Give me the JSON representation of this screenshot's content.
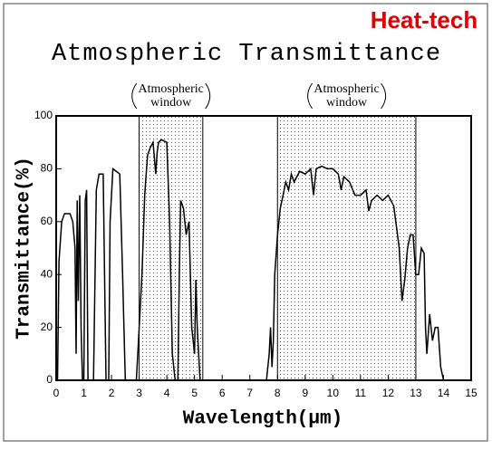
{
  "chart_data": {
    "type": "line",
    "title": "Atmospheric Transmittance",
    "brand": "Heat-tech",
    "xlabel": "Wavelength(μm)",
    "ylabel": "Transmittance(%)",
    "xlim": [
      0,
      15
    ],
    "xticks": [
      0,
      1,
      2,
      3,
      4,
      5,
      6,
      7,
      8,
      9,
      10,
      11,
      12,
      13,
      14,
      15
    ],
    "ylim": [
      0,
      100
    ],
    "yticks": [
      0,
      20,
      40,
      60,
      80,
      100
    ],
    "color": "#000000",
    "windows": [
      {
        "from": 3,
        "to": 5.3,
        "label": [
          "Atmospheric",
          "window"
        ]
      },
      {
        "from": 8,
        "to": 13,
        "label": [
          "Atmospheric",
          "window"
        ]
      }
    ],
    "x": [
      0.05,
      0.1,
      0.2,
      0.3,
      0.5,
      0.6,
      0.68,
      0.72,
      0.76,
      0.8,
      0.85,
      0.9,
      0.95,
      1.0,
      1.05,
      1.1,
      1.15,
      1.2,
      1.3,
      1.35,
      1.45,
      1.55,
      1.7,
      1.75,
      1.8,
      1.9,
      1.95,
      2.05,
      2.3,
      2.4,
      2.5,
      2.9,
      3.0,
      3.1,
      3.2,
      3.3,
      3.4,
      3.5,
      3.6,
      3.65,
      3.7,
      3.8,
      4.0,
      4.1,
      4.2,
      4.3,
      4.4,
      4.45,
      4.5,
      4.6,
      4.7,
      4.8,
      4.9,
      5.0,
      5.05,
      5.1,
      5.2,
      5.3,
      7.5,
      7.6,
      7.7,
      7.75,
      7.8,
      7.85,
      7.9,
      8.0,
      8.1,
      8.2,
      8.3,
      8.4,
      8.5,
      8.6,
      8.8,
      9.0,
      9.2,
      9.3,
      9.4,
      9.6,
      9.8,
      10.0,
      10.2,
      10.3,
      10.4,
      10.6,
      10.8,
      11.0,
      11.2,
      11.3,
      11.4,
      11.6,
      11.8,
      12.0,
      12.2,
      12.3,
      12.4,
      12.5,
      12.6,
      12.7,
      12.8,
      12.9,
      13.0,
      13.1,
      13.2,
      13.3,
      13.35,
      13.4,
      13.5,
      13.6,
      13.7,
      13.8,
      13.9,
      14.0
    ],
    "values": [
      0,
      45,
      60,
      63,
      63,
      60,
      50,
      10,
      68,
      30,
      70,
      20,
      0,
      0,
      68,
      72,
      0,
      0,
      0,
      0,
      72,
      78,
      78,
      40,
      0,
      0,
      60,
      80,
      78,
      40,
      0,
      0,
      20,
      40,
      70,
      85,
      88,
      90,
      78,
      86,
      90,
      91,
      90,
      60,
      10,
      0,
      0,
      40,
      68,
      65,
      55,
      60,
      20,
      10,
      38,
      20,
      0,
      0,
      0,
      0,
      10,
      20,
      5,
      15,
      40,
      55,
      65,
      70,
      75,
      72,
      78,
      75,
      79,
      78,
      80,
      70,
      80,
      81,
      80,
      80,
      78,
      72,
      77,
      75,
      70,
      70,
      72,
      64,
      68,
      70,
      68,
      70,
      66,
      58,
      50,
      30,
      38,
      50,
      55,
      55,
      40,
      40,
      50,
      48,
      20,
      10,
      25,
      15,
      20,
      20,
      5,
      0
    ]
  }
}
